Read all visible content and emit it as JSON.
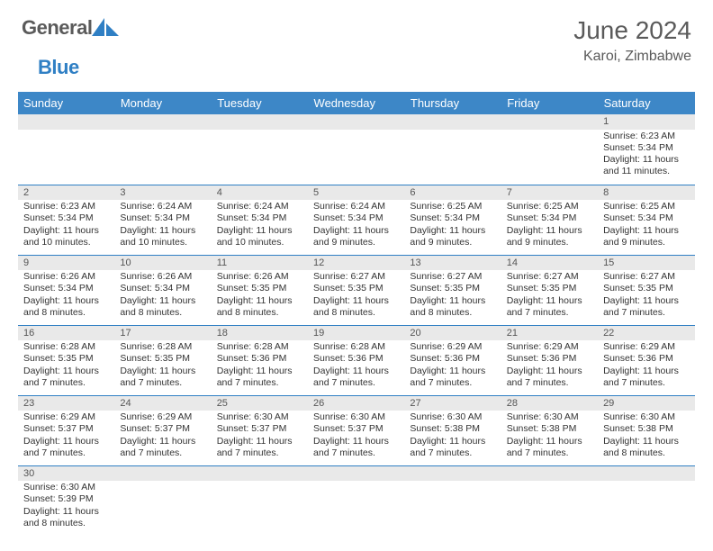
{
  "logo": {
    "general": "General",
    "blue": "Blue"
  },
  "title": "June 2024",
  "location": "Karoi, Zimbabwe",
  "colors": {
    "header_bg": "#3d87c7",
    "header_text": "#ffffff",
    "daynum_bg": "#e9e9e9",
    "border": "#2f7fc4",
    "logo_gray": "#5a5a5a",
    "logo_blue": "#2f7fc4"
  },
  "day_names": [
    "Sunday",
    "Monday",
    "Tuesday",
    "Wednesday",
    "Thursday",
    "Friday",
    "Saturday"
  ],
  "weeks": [
    [
      null,
      null,
      null,
      null,
      null,
      null,
      {
        "n": "1",
        "sr": "6:23 AM",
        "ss": "5:34 PM",
        "dl": "11 hours and 11 minutes."
      }
    ],
    [
      {
        "n": "2",
        "sr": "6:23 AM",
        "ss": "5:34 PM",
        "dl": "11 hours and 10 minutes."
      },
      {
        "n": "3",
        "sr": "6:24 AM",
        "ss": "5:34 PM",
        "dl": "11 hours and 10 minutes."
      },
      {
        "n": "4",
        "sr": "6:24 AM",
        "ss": "5:34 PM",
        "dl": "11 hours and 10 minutes."
      },
      {
        "n": "5",
        "sr": "6:24 AM",
        "ss": "5:34 PM",
        "dl": "11 hours and 9 minutes."
      },
      {
        "n": "6",
        "sr": "6:25 AM",
        "ss": "5:34 PM",
        "dl": "11 hours and 9 minutes."
      },
      {
        "n": "7",
        "sr": "6:25 AM",
        "ss": "5:34 PM",
        "dl": "11 hours and 9 minutes."
      },
      {
        "n": "8",
        "sr": "6:25 AM",
        "ss": "5:34 PM",
        "dl": "11 hours and 9 minutes."
      }
    ],
    [
      {
        "n": "9",
        "sr": "6:26 AM",
        "ss": "5:34 PM",
        "dl": "11 hours and 8 minutes."
      },
      {
        "n": "10",
        "sr": "6:26 AM",
        "ss": "5:34 PM",
        "dl": "11 hours and 8 minutes."
      },
      {
        "n": "11",
        "sr": "6:26 AM",
        "ss": "5:35 PM",
        "dl": "11 hours and 8 minutes."
      },
      {
        "n": "12",
        "sr": "6:27 AM",
        "ss": "5:35 PM",
        "dl": "11 hours and 8 minutes."
      },
      {
        "n": "13",
        "sr": "6:27 AM",
        "ss": "5:35 PM",
        "dl": "11 hours and 8 minutes."
      },
      {
        "n": "14",
        "sr": "6:27 AM",
        "ss": "5:35 PM",
        "dl": "11 hours and 7 minutes."
      },
      {
        "n": "15",
        "sr": "6:27 AM",
        "ss": "5:35 PM",
        "dl": "11 hours and 7 minutes."
      }
    ],
    [
      {
        "n": "16",
        "sr": "6:28 AM",
        "ss": "5:35 PM",
        "dl": "11 hours and 7 minutes."
      },
      {
        "n": "17",
        "sr": "6:28 AM",
        "ss": "5:35 PM",
        "dl": "11 hours and 7 minutes."
      },
      {
        "n": "18",
        "sr": "6:28 AM",
        "ss": "5:36 PM",
        "dl": "11 hours and 7 minutes."
      },
      {
        "n": "19",
        "sr": "6:28 AM",
        "ss": "5:36 PM",
        "dl": "11 hours and 7 minutes."
      },
      {
        "n": "20",
        "sr": "6:29 AM",
        "ss": "5:36 PM",
        "dl": "11 hours and 7 minutes."
      },
      {
        "n": "21",
        "sr": "6:29 AM",
        "ss": "5:36 PM",
        "dl": "11 hours and 7 minutes."
      },
      {
        "n": "22",
        "sr": "6:29 AM",
        "ss": "5:36 PM",
        "dl": "11 hours and 7 minutes."
      }
    ],
    [
      {
        "n": "23",
        "sr": "6:29 AM",
        "ss": "5:37 PM",
        "dl": "11 hours and 7 minutes."
      },
      {
        "n": "24",
        "sr": "6:29 AM",
        "ss": "5:37 PM",
        "dl": "11 hours and 7 minutes."
      },
      {
        "n": "25",
        "sr": "6:30 AM",
        "ss": "5:37 PM",
        "dl": "11 hours and 7 minutes."
      },
      {
        "n": "26",
        "sr": "6:30 AM",
        "ss": "5:37 PM",
        "dl": "11 hours and 7 minutes."
      },
      {
        "n": "27",
        "sr": "6:30 AM",
        "ss": "5:38 PM",
        "dl": "11 hours and 7 minutes."
      },
      {
        "n": "28",
        "sr": "6:30 AM",
        "ss": "5:38 PM",
        "dl": "11 hours and 7 minutes."
      },
      {
        "n": "29",
        "sr": "6:30 AM",
        "ss": "5:38 PM",
        "dl": "11 hours and 8 minutes."
      }
    ],
    [
      {
        "n": "30",
        "sr": "6:30 AM",
        "ss": "5:39 PM",
        "dl": "11 hours and 8 minutes."
      },
      null,
      null,
      null,
      null,
      null,
      null
    ]
  ],
  "labels": {
    "sunrise": "Sunrise: ",
    "sunset": "Sunset: ",
    "daylight": "Daylight: "
  }
}
